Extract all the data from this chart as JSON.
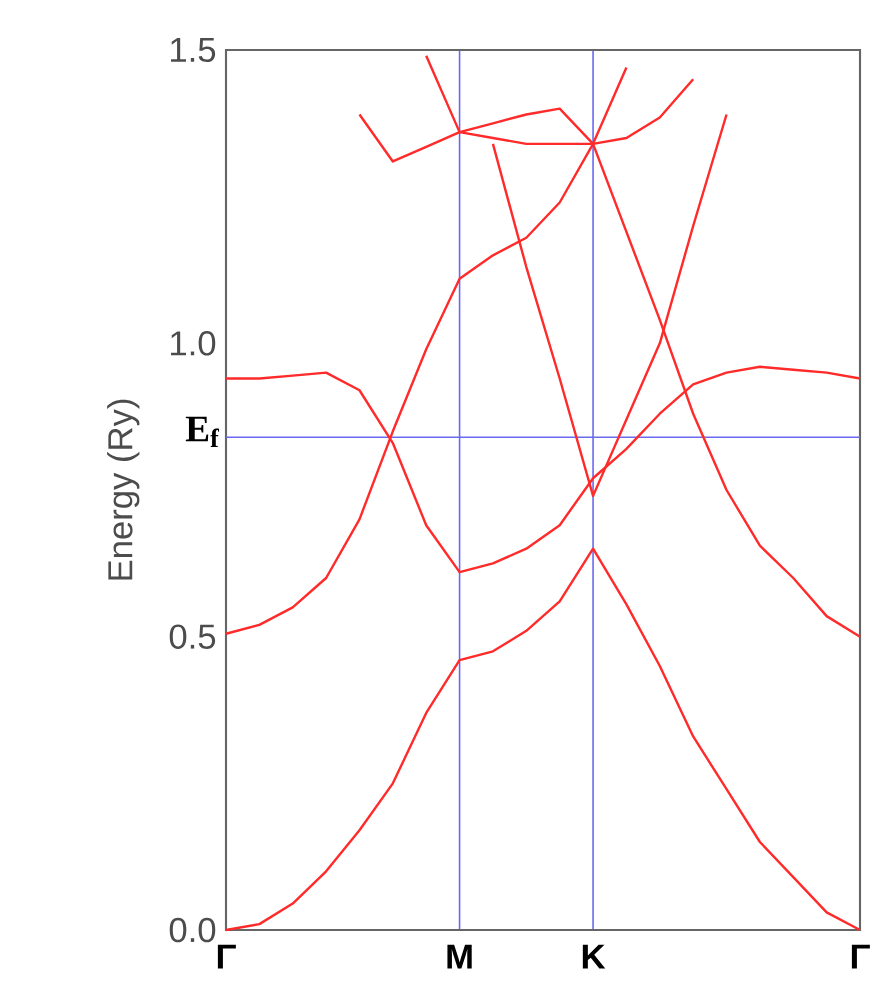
{
  "chart_data": {
    "type": "line",
    "ylabel": "Energy (Ry)",
    "grid": "x",
    "categories": [
      "Γ",
      null,
      null,
      null,
      null,
      null,
      null,
      "M",
      null,
      null,
      null,
      "K",
      null,
      null,
      null,
      null,
      null,
      null,
      null,
      "Γ"
    ],
    "ylim": [
      0,
      1.5
    ],
    "yticks": [
      {
        "value": 0,
        "label": "0.0"
      },
      {
        "value": 0.5,
        "label": "0.5"
      },
      {
        "value": 1,
        "label": "1.0"
      },
      {
        "value": 1.5,
        "label": "1.5"
      }
    ],
    "ref_lines": [
      {
        "axis": "y",
        "value": 0.84,
        "label": "E$_{f}$",
        "color": "#6a6af0"
      }
    ],
    "series": [
      {
        "color": "#ff2a2a",
        "values": [
          0,
          0.01,
          0.045,
          0.1,
          0.17,
          0.25,
          0.37,
          0.46,
          0.475,
          0.51,
          0.56,
          0.65,
          0.555,
          0.45,
          0.33,
          0.24,
          0.15,
          0.09,
          0.03,
          0
        ]
      },
      {
        "color": "#ff2a2a",
        "values": [
          0.505,
          0.52,
          0.55,
          0.6,
          0.7,
          0.85,
          0.99,
          1.11,
          1.15,
          1.18,
          1.24,
          1.34,
          1.47,
          null,
          null,
          null,
          null,
          null,
          null,
          null
        ]
      },
      {
        "color": "#ff2a2a",
        "values": [
          0.94,
          0.94,
          0.945,
          0.95,
          0.92,
          0.83,
          0.69,
          0.61,
          0.625,
          0.65,
          0.69,
          0.77,
          0.82,
          0.88,
          0.93,
          0.95,
          0.96,
          0.955,
          0.95,
          0.94
        ]
      },
      {
        "color": "#ff2a2a",
        "values": [
          null,
          null,
          null,
          null,
          null,
          null,
          null,
          null,
          1.34,
          1.13,
          0.94,
          0.74,
          0.87,
          1.0,
          1.2,
          1.39,
          null,
          null,
          null,
          null
        ]
      },
      {
        "color": "#ff2a2a",
        "values": [
          null,
          null,
          null,
          null,
          null,
          null,
          1.49,
          1.36,
          1.35,
          1.34,
          1.34,
          1.34,
          1.35,
          1.385,
          1.45,
          null,
          null,
          null,
          null,
          null
        ]
      },
      {
        "color": "#ff2a2a",
        "values": [
          null,
          null,
          null,
          null,
          1.39,
          1.31,
          1.335,
          1.36,
          1.375,
          1.39,
          1.4,
          1.34,
          1.19,
          1.04,
          0.88,
          0.75,
          0.655,
          0.6,
          0.535,
          0.5
        ]
      }
    ]
  }
}
